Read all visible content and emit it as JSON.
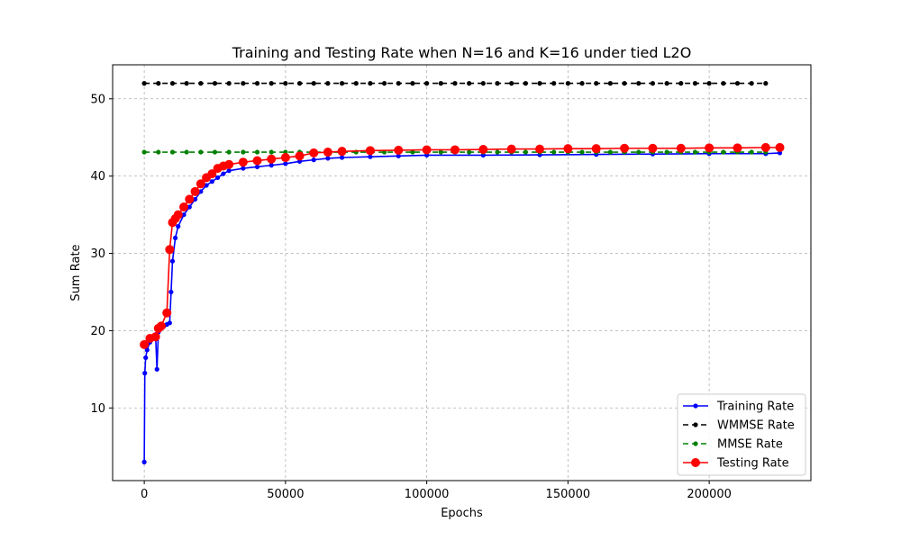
{
  "chart_data": {
    "type": "line",
    "title": "Training and Testing Rate when N=16 and K=16 under tied L2O",
    "xlabel": "Epochs",
    "ylabel": "Sum Rate",
    "xlim": [
      -11200,
      236000
    ],
    "ylim": [
      0.6,
      54.4
    ],
    "xticks": [
      0,
      50000,
      100000,
      150000,
      200000
    ],
    "xtick_labels": [
      "0",
      "50000",
      "100000",
      "150000",
      "200000"
    ],
    "yticks": [
      10,
      20,
      30,
      40,
      50
    ],
    "ytick_labels": [
      "10",
      "20",
      "30",
      "40",
      "50"
    ],
    "grid": true,
    "legend_position": "lower right",
    "series": [
      {
        "name": "Training Rate",
        "color": "#0000ff",
        "marker": "small-dot",
        "linestyle": "solid",
        "x": [
          0,
          200,
          500,
          1000,
          2000,
          3000,
          4000,
          4500,
          5000,
          5500,
          6000,
          7000,
          8000,
          9000,
          9500,
          10000,
          11000,
          12000,
          14000,
          16000,
          18000,
          20000,
          22000,
          24000,
          26000,
          28000,
          30000,
          35000,
          40000,
          45000,
          50000,
          55000,
          60000,
          65000,
          70000,
          80000,
          90000,
          100000,
          120000,
          140000,
          160000,
          180000,
          200000,
          220000,
          225000
        ],
        "y": [
          3.0,
          14.5,
          16.5,
          17.5,
          18.5,
          19.0,
          19.5,
          15.0,
          19.8,
          20.2,
          20.4,
          20.6,
          20.8,
          21.0,
          25.0,
          29.0,
          32.0,
          33.5,
          35.0,
          36.0,
          37.0,
          38.0,
          38.8,
          39.3,
          39.8,
          40.3,
          40.7,
          41.0,
          41.2,
          41.4,
          41.6,
          41.9,
          42.1,
          42.3,
          42.4,
          42.5,
          42.6,
          42.7,
          42.7,
          42.75,
          42.8,
          42.85,
          42.9,
          42.9,
          43.0
        ]
      },
      {
        "name": "WMMSE Rate",
        "color": "#000000",
        "marker": "small-dot",
        "linestyle": "dashed",
        "x": [
          0,
          5000,
          10000,
          15000,
          20000,
          25000,
          30000,
          35000,
          40000,
          45000,
          50000,
          55000,
          60000,
          65000,
          70000,
          75000,
          80000,
          85000,
          90000,
          95000,
          100000,
          105000,
          110000,
          115000,
          120000,
          125000,
          130000,
          135000,
          140000,
          145000,
          150000,
          155000,
          160000,
          165000,
          170000,
          175000,
          180000,
          185000,
          190000,
          195000,
          200000,
          205000,
          210000,
          215000,
          220000
        ],
        "y": [
          52.0,
          52.0,
          52.0,
          52.0,
          52.0,
          52.0,
          52.0,
          52.0,
          52.0,
          52.0,
          52.0,
          52.0,
          52.0,
          52.0,
          52.0,
          52.0,
          52.0,
          52.0,
          52.0,
          52.0,
          52.0,
          52.0,
          52.0,
          52.0,
          52.0,
          52.0,
          52.0,
          52.0,
          52.0,
          52.0,
          52.0,
          52.0,
          52.0,
          52.0,
          52.0,
          52.0,
          52.0,
          52.0,
          52.0,
          52.0,
          52.0,
          52.0,
          52.0,
          52.0,
          52.0
        ]
      },
      {
        "name": "MMSE Rate",
        "color": "#008000",
        "marker": "small-dot",
        "linestyle": "dashed",
        "x": [
          0,
          5000,
          10000,
          15000,
          20000,
          25000,
          30000,
          35000,
          40000,
          45000,
          50000,
          55000,
          60000,
          65000,
          70000,
          75000,
          80000,
          85000,
          90000,
          95000,
          100000,
          105000,
          110000,
          115000,
          120000,
          125000,
          130000,
          135000,
          140000,
          145000,
          150000,
          155000,
          160000,
          165000,
          170000,
          175000,
          180000,
          185000,
          190000,
          195000,
          200000,
          205000,
          210000,
          215000,
          220000
        ],
        "y": [
          43.1,
          43.1,
          43.1,
          43.1,
          43.1,
          43.1,
          43.1,
          43.1,
          43.1,
          43.1,
          43.1,
          43.1,
          43.1,
          43.1,
          43.1,
          43.1,
          43.1,
          43.1,
          43.1,
          43.1,
          43.1,
          43.1,
          43.1,
          43.1,
          43.1,
          43.1,
          43.1,
          43.1,
          43.1,
          43.1,
          43.1,
          43.1,
          43.1,
          43.1,
          43.1,
          43.1,
          43.1,
          43.1,
          43.1,
          43.1,
          43.1,
          43.1,
          43.1,
          43.1,
          43.1
        ]
      },
      {
        "name": "Testing Rate",
        "color": "#ff0000",
        "marker": "large-dot",
        "linestyle": "solid",
        "x": [
          0,
          2000,
          4000,
          5000,
          6000,
          8000,
          9000,
          10000,
          11000,
          12000,
          14000,
          16000,
          18000,
          20000,
          22000,
          24000,
          26000,
          28000,
          30000,
          35000,
          40000,
          45000,
          50000,
          55000,
          60000,
          65000,
          70000,
          80000,
          90000,
          100000,
          110000,
          120000,
          130000,
          140000,
          150000,
          160000,
          170000,
          180000,
          190000,
          200000,
          210000,
          220000,
          225000
        ],
        "y": [
          18.2,
          19.0,
          19.2,
          20.3,
          20.6,
          22.3,
          30.5,
          34.0,
          34.5,
          35.0,
          36.0,
          37.0,
          38.0,
          39.0,
          39.8,
          40.3,
          41.0,
          41.3,
          41.5,
          41.8,
          42.0,
          42.2,
          42.4,
          42.6,
          43.0,
          43.1,
          43.2,
          43.3,
          43.35,
          43.4,
          43.4,
          43.45,
          43.5,
          43.5,
          43.55,
          43.55,
          43.6,
          43.6,
          43.6,
          43.65,
          43.65,
          43.7,
          43.7
        ]
      }
    ]
  }
}
